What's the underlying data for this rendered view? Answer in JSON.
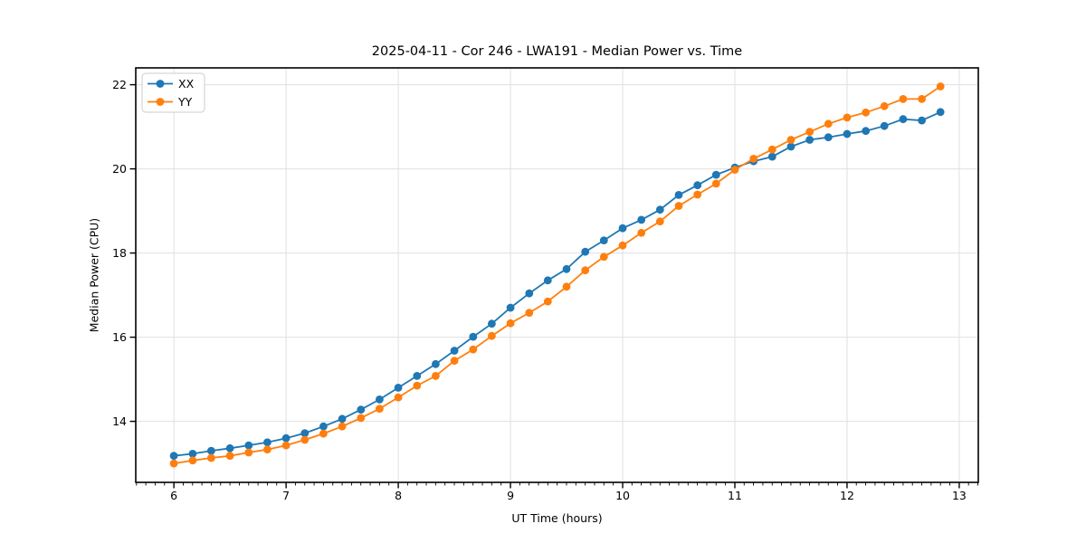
{
  "window": {
    "kind": "matplotlib-style-figure",
    "background": "#ffffff"
  },
  "chart_data": {
    "type": "line",
    "title": "2025-04-11 - Cor 246 - LWA191 - Median Power vs. Time",
    "xlabel": "UT Time (hours)",
    "ylabel": "Median Power (CPU)",
    "xlim": [
      5.66,
      13.17
    ],
    "ylim": [
      12.55,
      22.4
    ],
    "x_major_ticks": [
      6,
      7,
      8,
      9,
      10,
      11,
      12,
      13
    ],
    "y_major_ticks": [
      14,
      16,
      18,
      20,
      22
    ],
    "x_minor_step": 0.08333,
    "grid": "major-only",
    "grid_color": "#e0e0e0",
    "spine_color": "#000000",
    "legend_position": "upper-left",
    "x": [
      6.0,
      6.167,
      6.333,
      6.5,
      6.667,
      6.833,
      7.0,
      7.167,
      7.333,
      7.5,
      7.667,
      7.833,
      8.0,
      8.167,
      8.333,
      8.5,
      8.667,
      8.833,
      9.0,
      9.167,
      9.333,
      9.5,
      9.667,
      9.833,
      10.0,
      10.167,
      10.333,
      10.5,
      10.667,
      10.833,
      11.0,
      11.167,
      11.333,
      11.5,
      11.667,
      11.833,
      12.0,
      12.167,
      12.333,
      12.5,
      12.667,
      12.833
    ],
    "series": [
      {
        "name": "XX",
        "color": "#1f77b4",
        "marker": "circle",
        "values": [
          13.18,
          13.23,
          13.3,
          13.36,
          13.43,
          13.5,
          13.6,
          13.72,
          13.88,
          14.06,
          14.28,
          14.52,
          14.8,
          15.08,
          15.36,
          15.68,
          16.01,
          16.32,
          16.7,
          17.04,
          17.35,
          17.62,
          18.03,
          18.3,
          18.59,
          18.79,
          19.03,
          19.38,
          19.61,
          19.86,
          20.03,
          20.18,
          20.29,
          20.53,
          20.69,
          20.75,
          20.83,
          20.9,
          21.02,
          21.18,
          21.15,
          21.35
        ]
      },
      {
        "name": "YY",
        "color": "#ff7f0e",
        "marker": "circle",
        "values": [
          13.0,
          13.07,
          13.13,
          13.18,
          13.26,
          13.33,
          13.43,
          13.56,
          13.71,
          13.88,
          14.08,
          14.3,
          14.57,
          14.85,
          15.08,
          15.44,
          15.71,
          16.03,
          16.33,
          16.58,
          16.85,
          17.2,
          17.59,
          17.91,
          18.18,
          18.48,
          18.75,
          19.12,
          19.39,
          19.65,
          19.98,
          20.24,
          20.46,
          20.69,
          20.88,
          21.07,
          21.22,
          21.34,
          21.49,
          21.66,
          21.66,
          21.96
        ]
      }
    ]
  }
}
